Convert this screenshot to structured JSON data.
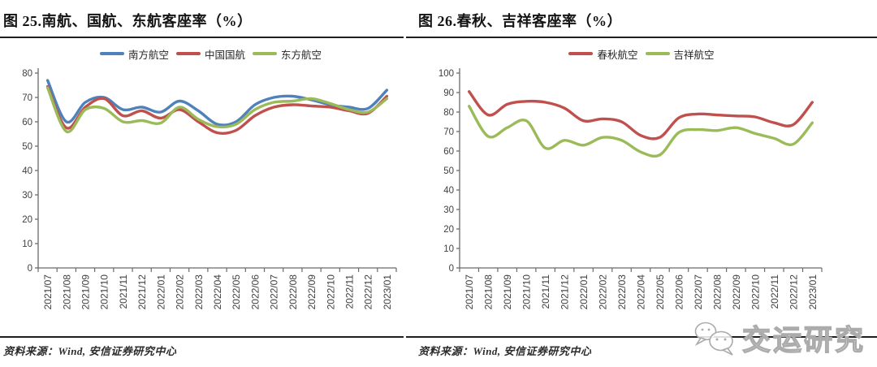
{
  "page": {
    "background": "#ffffff"
  },
  "figures": [
    {
      "title": "图 25.南航、国航、东航客座率（%）",
      "source": "资料来源：Wind, 安信证券研究中心"
    },
    {
      "title": "图 26.春秋、吉祥客座率（%）",
      "source": "资料来源：Wind, 安信证券研究中心"
    }
  ],
  "watermark": {
    "icon": "wechat-icon",
    "text": "交运研究"
  },
  "style_colors": {
    "axis": "#6b6b6b",
    "tick_text": "#3f3f3f",
    "rule": "#1f1f1f"
  },
  "chart_data": [
    {
      "type": "line",
      "title": "图 25.南航、国航、东航客座率（%）",
      "xlabel": "",
      "ylabel": "",
      "x": [
        "2021/07",
        "2021/08",
        "2021/09",
        "2021/10",
        "2021/11",
        "2021/12",
        "2022/01",
        "2022/02",
        "2022/03",
        "2022/04",
        "2022/05",
        "2022/06",
        "2022/07",
        "2022/08",
        "2022/09",
        "2022/10",
        "2022/11",
        "2022/12",
        "2023/01"
      ],
      "series": [
        {
          "name": "南方航空",
          "color": "#4F81BD",
          "values": [
            77,
            60,
            68,
            70,
            65,
            66,
            64,
            68.5,
            64.5,
            59,
            60,
            67,
            70,
            70.5,
            69,
            67,
            66,
            65.5,
            73
          ]
        },
        {
          "name": "中国国航",
          "color": "#C0504D",
          "values": [
            74.5,
            57.5,
            66,
            69.5,
            62.5,
            64.5,
            61.5,
            65,
            60,
            55.5,
            56.5,
            62.5,
            66,
            67,
            66.5,
            66,
            64.5,
            63.5,
            70.5
          ]
        },
        {
          "name": "东方航空",
          "color": "#9BBB59",
          "values": [
            74,
            56,
            65,
            65.5,
            60,
            60.5,
            59.5,
            66,
            61,
            58,
            59,
            65,
            68,
            68.5,
            69.5,
            67.5,
            65,
            64,
            69.5
          ]
        }
      ],
      "ylim": [
        0,
        80
      ],
      "ytick_step": 10,
      "grid": false,
      "legend_position": "top",
      "x_label_rotation": -90
    },
    {
      "type": "line",
      "title": "图 26.春秋、吉祥客座率（%）",
      "xlabel": "",
      "ylabel": "",
      "x": [
        "2021/07",
        "2021/08",
        "2021/09",
        "2021/10",
        "2021/11",
        "2021/12",
        "2022/01",
        "2022/02",
        "2022/03",
        "2022/04",
        "2022/05",
        "2022/06",
        "2022/07",
        "2022/08",
        "2022/09",
        "2022/10",
        "2022/11",
        "2022/12",
        "2023/01"
      ],
      "series": [
        {
          "name": "春秋航空",
          "color": "#C0504D",
          "values": [
            90.5,
            78.5,
            84,
            85.5,
            85,
            82,
            75.5,
            76.5,
            75,
            68,
            67,
            77,
            79,
            78.5,
            78,
            77.5,
            74.5,
            73.5,
            85
          ]
        },
        {
          "name": "吉祥航空",
          "color": "#9BBB59",
          "values": [
            83,
            67.5,
            72,
            75.5,
            61.5,
            65.5,
            63,
            67,
            65.5,
            59.5,
            58,
            69.5,
            71,
            70.5,
            72,
            69,
            66.5,
            63.5,
            74.5
          ]
        }
      ],
      "ylim": [
        0,
        100
      ],
      "ytick_step": 10,
      "grid": false,
      "legend_position": "top",
      "x_label_rotation": -90
    }
  ]
}
